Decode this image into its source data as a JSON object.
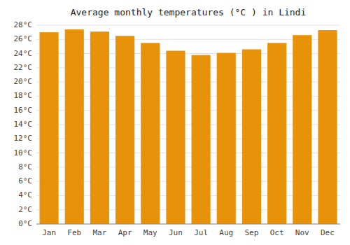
{
  "chart_data": {
    "type": "bar",
    "title": "Average monthly temperatures (°C ) in Lindi",
    "categories": [
      "Jan",
      "Feb",
      "Mar",
      "Apr",
      "May",
      "Jun",
      "Jul",
      "Aug",
      "Sep",
      "Oct",
      "Nov",
      "Dec"
    ],
    "values": [
      27.0,
      27.4,
      27.1,
      26.5,
      25.5,
      24.4,
      23.8,
      24.1,
      24.6,
      25.5,
      26.6,
      27.3
    ],
    "color": "#E8920A",
    "ylim": [
      0,
      28
    ],
    "yticks": [
      {
        "value": 0,
        "label": "0°C"
      },
      {
        "value": 2,
        "label": "2°C"
      },
      {
        "value": 4,
        "label": "4°C"
      },
      {
        "value": 6,
        "label": "6°C"
      },
      {
        "value": 8,
        "label": "8°C"
      },
      {
        "value": 10,
        "label": "10°C"
      },
      {
        "value": 12,
        "label": "12°C"
      },
      {
        "value": 14,
        "label": "14°C"
      },
      {
        "value": 16,
        "label": "16°C"
      },
      {
        "value": 18,
        "label": "18°C"
      },
      {
        "value": 20,
        "label": "20°C"
      },
      {
        "value": 22,
        "label": "22°C"
      },
      {
        "value": 24,
        "label": "24°C"
      },
      {
        "value": 26,
        "label": "26°C"
      },
      {
        "value": 28,
        "label": "28°C"
      }
    ],
    "grid": true
  }
}
